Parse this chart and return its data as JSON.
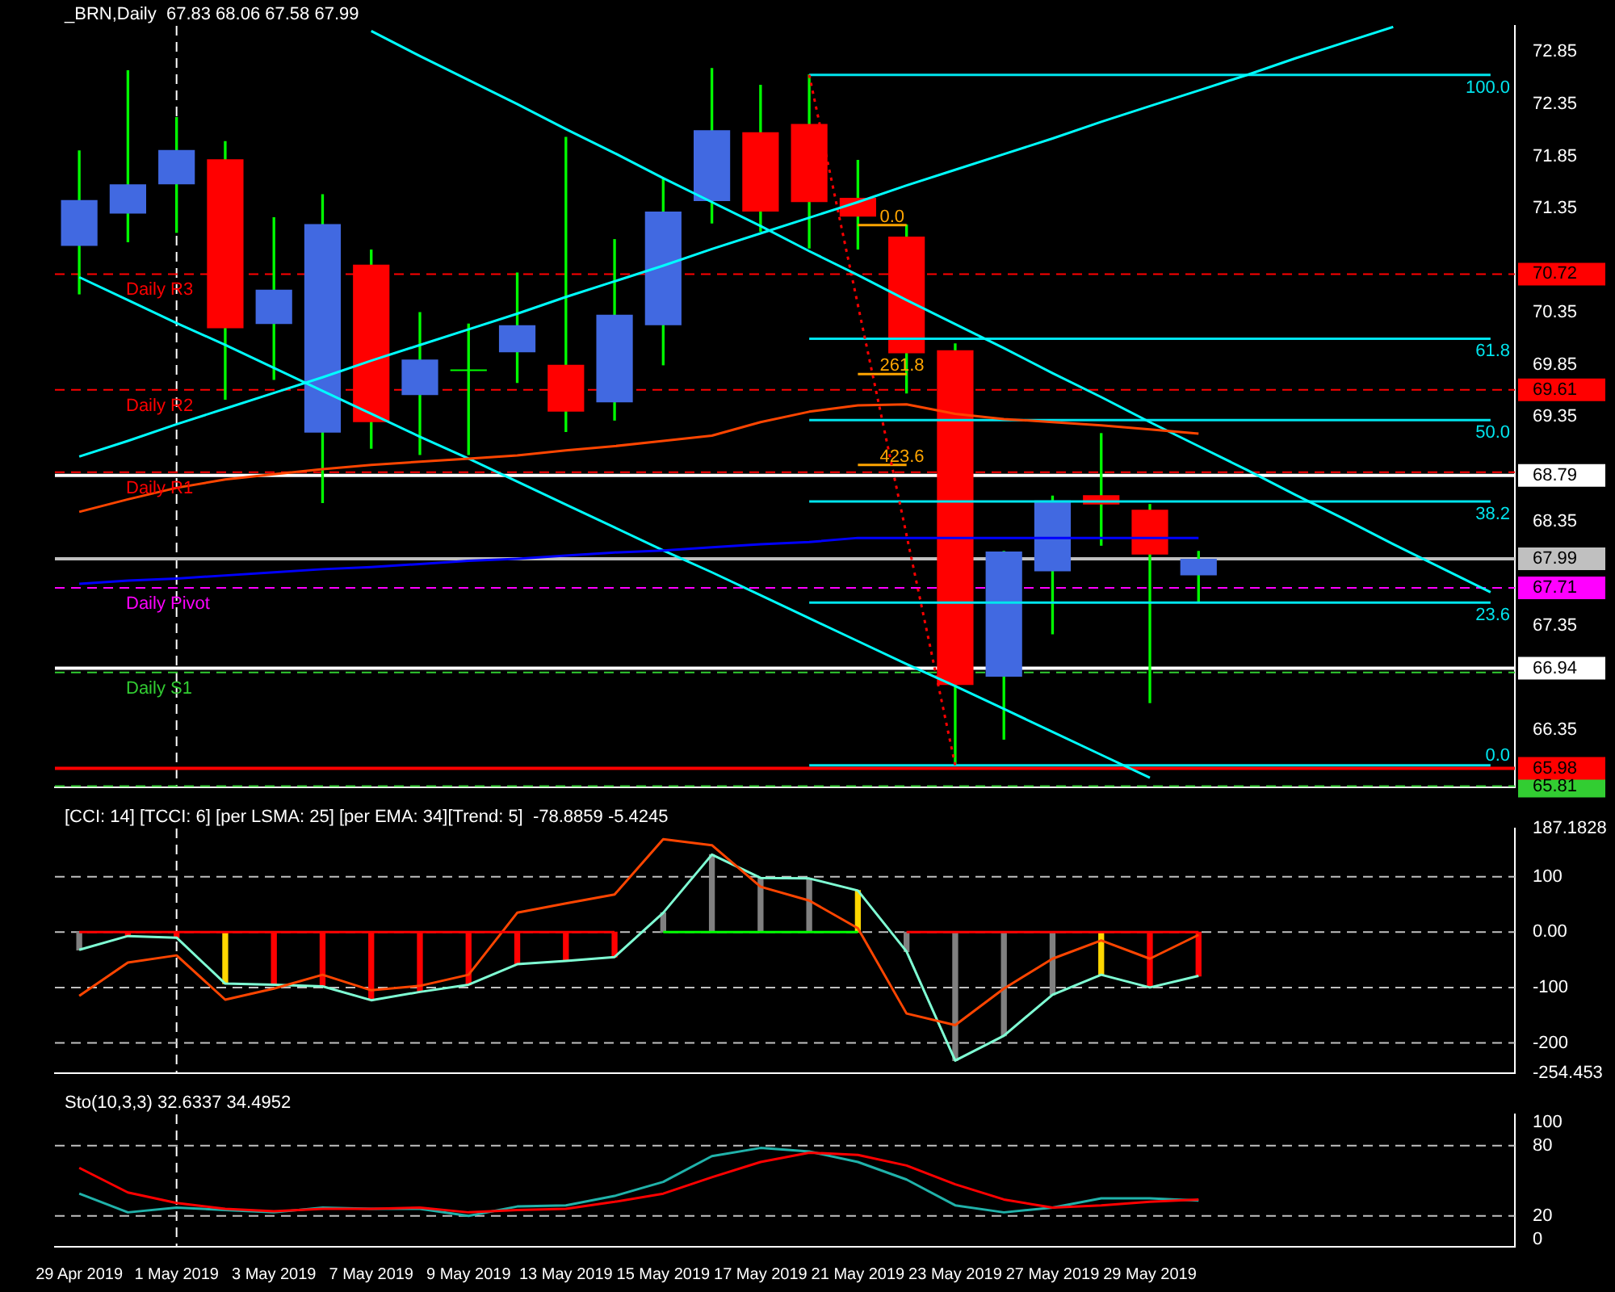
{
  "chart_data": [
    {
      "type": "candlestick",
      "title": "_BRN,Daily  67.83 68.06 67.58 67.99",
      "categories": [
        "29 Apr 2019",
        null,
        "1 May 2019",
        null,
        "3 May 2019",
        null,
        "7 May 2019",
        null,
        "9 May 2019",
        null,
        "13 May 2019",
        null,
        "15 May 2019",
        null,
        "17 May 2019",
        null,
        "21 May 2019",
        null,
        "23 May 2019",
        null,
        "27 May 2019",
        null,
        "29 May 2019",
        null,
        null,
        null,
        null,
        null,
        null,
        null
      ],
      "ohlc": [
        [
          70.99,
          71.9,
          70.53,
          71.43
        ],
        [
          71.3,
          72.67,
          71.03,
          71.58
        ],
        [
          71.58,
          72.22,
          71.12,
          71.91
        ],
        [
          71.82,
          71.99,
          69.52,
          70.2
        ],
        [
          70.24,
          71.26,
          69.71,
          70.57
        ],
        [
          69.2,
          71.48,
          68.53,
          71.2
        ],
        [
          70.81,
          70.95,
          69.05,
          69.3
        ],
        [
          69.56,
          70.35,
          68.99,
          69.9
        ],
        [
          69.79,
          70.24,
          68.99,
          69.79
        ],
        [
          69.97,
          70.73,
          69.68,
          70.23
        ],
        [
          69.85,
          72.03,
          69.21,
          69.4
        ],
        [
          69.49,
          71.05,
          69.32,
          70.33
        ],
        [
          70.23,
          71.64,
          69.85,
          71.32
        ],
        [
          71.42,
          72.69,
          71.21,
          72.1
        ],
        [
          72.08,
          72.53,
          71.13,
          71.32
        ],
        [
          72.16,
          72.63,
          70.97,
          71.41
        ],
        [
          71.45,
          71.81,
          70.96,
          71.27
        ],
        [
          71.08,
          71.19,
          69.58,
          69.96
        ],
        [
          69.99,
          70.05,
          66.01,
          66.78
        ],
        [
          66.86,
          68.06,
          66.26,
          68.06
        ],
        [
          67.87,
          68.59,
          67.27,
          68.55
        ],
        [
          68.6,
          69.19,
          68.12,
          68.51
        ],
        [
          68.46,
          68.51,
          66.61,
          68.03
        ],
        [
          67.83,
          68.06,
          67.58,
          67.99
        ],
        null,
        null,
        null,
        null,
        null,
        null
      ],
      "colors": [
        "#4169e1",
        "#4169e1",
        "#4169e1",
        "#ff0000",
        "#4169e1",
        "#4169e1",
        "#ff0000",
        "#4169e1",
        "#00ff00",
        "#4169e1",
        "#ff0000",
        "#4169e1",
        "#4169e1",
        "#4169e1",
        "#ff0000",
        "#ff0000",
        "#ff0000",
        "#ff0000",
        "#ff0000",
        "#4169e1",
        "#4169e1",
        "#ff0000",
        "#ff0000",
        "#4169e1",
        null,
        null,
        null,
        null,
        null,
        null
      ],
      "color": "#00ff00",
      "series": [
        {
          "type": "line",
          "color": "#ff4500",
          "values": [
            68.44,
            68.56,
            68.67,
            68.75,
            68.8,
            68.85,
            68.89,
            68.92,
            68.95,
            68.98,
            69.03,
            69.07,
            69.12,
            69.17,
            69.3,
            69.4,
            69.46,
            69.47,
            69.38,
            69.33,
            69.3,
            69.27,
            69.23,
            69.19,
            null,
            null,
            null,
            null,
            null,
            null
          ]
        },
        {
          "type": "line",
          "color": "#0000ff",
          "values": [
            67.75,
            67.78,
            67.8,
            67.83,
            67.86,
            67.89,
            67.91,
            67.94,
            67.97,
            67.99,
            68.02,
            68.05,
            68.07,
            68.1,
            68.13,
            68.15,
            68.19,
            68.19,
            68.19,
            68.19,
            68.19,
            68.19,
            68.19,
            68.19,
            null,
            null,
            null,
            null,
            null,
            null
          ]
        },
        {
          "type": "line",
          "color": "#00ffff",
          "values": [
            68.97,
            69.12,
            69.28,
            69.43,
            69.58,
            69.73,
            69.89,
            70.04,
            70.19,
            70.34,
            70.5,
            70.65,
            70.8,
            70.96,
            71.11,
            71.26,
            71.41,
            71.57,
            71.72,
            71.87,
            72.02,
            72.18,
            72.33,
            72.48,
            72.63,
            72.79,
            72.94,
            73.09,
            null,
            null
          ]
        },
        {
          "type": "line",
          "color": "#00ffff",
          "values": [
            null,
            null,
            null,
            null,
            null,
            null,
            73.05,
            72.81,
            72.58,
            72.35,
            72.11,
            71.88,
            71.64,
            71.41,
            71.18,
            70.94,
            70.71,
            70.47,
            70.24,
            70.01,
            69.77,
            69.54,
            69.3,
            69.07,
            68.84,
            68.6,
            68.37,
            68.13,
            67.9,
            67.67
          ]
        },
        {
          "type": "line",
          "color": "#00ffff",
          "values": [
            70.69,
            70.47,
            70.25,
            70.04,
            69.82,
            69.6,
            69.38,
            69.16,
            68.95,
            68.73,
            68.51,
            68.29,
            68.07,
            67.86,
            67.64,
            67.42,
            67.2,
            66.98,
            66.77,
            66.55,
            66.33,
            66.11,
            65.89,
            null,
            null,
            null,
            null,
            null,
            null,
            null
          ]
        },
        {
          "type": "line",
          "color": "#ff0000",
          "line_style": "dotted",
          "values": [
            null,
            null,
            null,
            null,
            null,
            null,
            null,
            null,
            null,
            null,
            null,
            null,
            null,
            null,
            null,
            72.63,
            null,
            null,
            66.01,
            null,
            null,
            null,
            null,
            null,
            null,
            null,
            null,
            null,
            null,
            null
          ]
        },
        {
          "type": "line",
          "color": "#ffa500",
          "values": [
            null,
            null,
            null,
            null,
            null,
            null,
            null,
            null,
            null,
            null,
            null,
            null,
            null,
            null,
            null,
            null,
            71.19,
            71.19,
            null,
            null,
            null,
            null,
            null,
            null,
            null,
            null,
            null,
            null,
            null,
            null
          ]
        },
        {
          "type": "line",
          "color": "#ffa500",
          "values": [
            null,
            null,
            null,
            null,
            null,
            null,
            null,
            null,
            null,
            null,
            null,
            null,
            null,
            null,
            null,
            null,
            69.76,
            69.76,
            null,
            null,
            null,
            null,
            null,
            null,
            null,
            null,
            null,
            null,
            null,
            null
          ]
        },
        {
          "type": "line",
          "color": "#ffa500",
          "values": [
            null,
            null,
            null,
            null,
            null,
            null,
            null,
            null,
            null,
            null,
            null,
            null,
            null,
            null,
            null,
            null,
            68.89,
            68.89,
            null,
            null,
            null,
            null,
            null,
            null,
            null,
            null,
            null,
            null,
            null,
            null
          ]
        },
        {
          "type": "line",
          "name": "100.0",
          "color": "#00e5ee",
          "values": [
            null,
            null,
            null,
            null,
            null,
            null,
            null,
            null,
            null,
            null,
            null,
            null,
            null,
            null,
            null,
            72.63,
            72.63,
            72.63,
            72.63,
            72.63,
            72.63,
            72.63,
            72.63,
            72.63,
            72.63,
            72.63,
            72.63,
            72.63,
            72.63,
            72.63
          ]
        },
        {
          "type": "line",
          "name": "61.8",
          "color": "#00e5ee",
          "values": [
            null,
            null,
            null,
            null,
            null,
            null,
            null,
            null,
            null,
            null,
            null,
            null,
            null,
            null,
            null,
            70.1,
            70.1,
            70.1,
            70.1,
            70.1,
            70.1,
            70.1,
            70.1,
            70.1,
            70.1,
            70.1,
            70.1,
            70.1,
            70.1,
            70.1
          ]
        },
        {
          "type": "line",
          "name": "50.0",
          "color": "#00e5ee",
          "values": [
            null,
            null,
            null,
            null,
            null,
            null,
            null,
            null,
            null,
            null,
            null,
            null,
            null,
            null,
            null,
            69.32,
            69.32,
            69.32,
            69.32,
            69.32,
            69.32,
            69.32,
            69.32,
            69.32,
            69.32,
            69.32,
            69.32,
            69.32,
            69.32,
            69.32
          ]
        },
        {
          "type": "line",
          "name": "38.2",
          "color": "#00e5ee",
          "values": [
            null,
            null,
            null,
            null,
            null,
            null,
            null,
            null,
            null,
            null,
            null,
            null,
            null,
            null,
            null,
            68.54,
            68.54,
            68.54,
            68.54,
            68.54,
            68.54,
            68.54,
            68.54,
            68.54,
            68.54,
            68.54,
            68.54,
            68.54,
            68.54,
            68.54
          ]
        },
        {
          "type": "line",
          "name": "23.6",
          "color": "#00e5ee",
          "values": [
            null,
            null,
            null,
            null,
            null,
            null,
            null,
            null,
            null,
            null,
            null,
            null,
            null,
            null,
            null,
            67.57,
            67.57,
            67.57,
            67.57,
            67.57,
            67.57,
            67.57,
            67.57,
            67.57,
            67.57,
            67.57,
            67.57,
            67.57,
            67.57,
            67.57
          ]
        },
        {
          "type": "line",
          "name": "0.0",
          "color": "#00e5ee",
          "values": [
            null,
            null,
            null,
            null,
            null,
            null,
            null,
            null,
            null,
            null,
            null,
            null,
            null,
            null,
            null,
            66.01,
            66.01,
            66.01,
            66.01,
            66.01,
            66.01,
            66.01,
            66.01,
            66.01,
            66.01,
            66.01,
            66.01,
            66.01,
            66.01,
            66.01
          ]
        }
      ],
      "ylim": [
        65.8,
        73.1
      ],
      "yticks": [
        {
          "value": 65.81,
          "label": "65.81"
        },
        {
          "value": 65.98,
          "label": "65.98"
        },
        66.35,
        {
          "value": 66.94,
          "label": "66.94"
        },
        67.35,
        {
          "value": 67.71,
          "label": "67.71"
        },
        {
          "value": 67.99,
          "label": "67.99"
        },
        68.35,
        {
          "value": 68.79,
          "label": "68.79"
        },
        69.35,
        {
          "value": 69.61,
          "label": "69.61"
        },
        69.85,
        70.35,
        {
          "value": 70.72,
          "label": "70.72"
        },
        71.35,
        71.85,
        72.35,
        72.85
      ],
      "tick_labels": "y",
      "ref_lines": [
        {
          "axis": "x",
          "value": "1 May 2019",
          "color": "#ffffff",
          "line_style": "dashed"
        },
        {
          "axis": "y",
          "value": 70.72,
          "label": "Daily R3",
          "color": "#ff0000",
          "line_style": "dashed"
        },
        {
          "axis": "y",
          "value": 69.61,
          "label": "Daily R2",
          "color": "#ff0000",
          "line_style": "dashed"
        },
        {
          "axis": "y",
          "value": 68.79,
          "color": "#ffffff",
          "line_style": "solid"
        },
        {
          "axis": "y",
          "value": 68.82,
          "label": "Daily R1",
          "color": "#ff0000",
          "line_style": "dashed"
        },
        {
          "axis": "y",
          "value": 67.99,
          "color": "#c0c0c0",
          "line_style": "solid"
        },
        {
          "axis": "y",
          "value": 67.71,
          "label": "Daily Pivot",
          "color": "#ff00ff",
          "line_style": "dashed"
        },
        {
          "axis": "y",
          "value": 66.9,
          "label": "Daily S1",
          "color": "#32cd32",
          "line_style": "dashed"
        },
        {
          "axis": "y",
          "value": 66.94,
          "color": "#ffffff",
          "line_style": "solid"
        },
        {
          "axis": "y",
          "value": 65.98,
          "color": "#ff0000",
          "line_style": "solid"
        },
        {
          "axis": "y",
          "value": 65.81,
          "color": "#32cd32",
          "line_style": "dashed"
        }
      ],
      "annotations": [
        {
          "text": "0.0",
          "x": "21 May 2019",
          "y": 71.19
        },
        {
          "text": "261.8",
          "x": "21 May 2019",
          "y": 69.76
        },
        {
          "text": "423.6",
          "x": "21 May 2019",
          "y": 68.89
        }
      ]
    },
    {
      "type": "bar",
      "title": "[CCI: 14] [TCCI: 6] [per LSMA: 25] [per EMA: 34][Trend: 5]  -78.8859 -5.4245",
      "categories": [
        "29 Apr 2019",
        null,
        "1 May 2019",
        null,
        "3 May 2019",
        null,
        "7 May 2019",
        null,
        "9 May 2019",
        null,
        "13 May 2019",
        null,
        "15 May 2019",
        null,
        "17 May 2019",
        null,
        "21 May 2019",
        null,
        "23 May 2019",
        null,
        "27 May 2019",
        null,
        "29 May 2019",
        null,
        null,
        null,
        null,
        null,
        null,
        null
      ],
      "series": [
        {
          "type": "bar",
          "colors": [
            "#808080",
            "#ff0000",
            "#ff0000",
            "#ffd700",
            "#ff0000",
            "#ff0000",
            "#ff0000",
            "#ff0000",
            "#ff0000",
            "#ff0000",
            "#ff0000",
            "#ff0000",
            "#808080",
            "#808080",
            "#808080",
            "#808080",
            "#ffd700",
            "#808080",
            "#808080",
            "#808080",
            "#808080",
            "#ffd700",
            "#ff0000",
            "#ff0000",
            null,
            null,
            null,
            null,
            null,
            null
          ],
          "values": [
            -32,
            -7,
            -10,
            -93,
            -95,
            -98,
            -123,
            -108,
            -95,
            -58,
            -52,
            -45,
            35,
            140,
            98,
            97,
            75,
            -35,
            -232,
            -187,
            -113,
            -77,
            -100,
            -79,
            null,
            null,
            null,
            null,
            null,
            null
          ]
        },
        {
          "type": "line",
          "color": "#ff0000",
          "values": [
            0,
            0,
            0,
            0,
            0,
            0,
            0,
            0,
            0,
            0,
            0,
            0,
            null,
            null,
            null,
            null,
            null,
            null,
            null,
            null,
            null,
            null,
            null,
            null,
            null,
            null,
            null,
            null,
            null,
            null
          ]
        },
        {
          "type": "line",
          "color": "#00ff00",
          "values": [
            null,
            null,
            null,
            null,
            null,
            null,
            null,
            null,
            null,
            null,
            null,
            null,
            0,
            0,
            0,
            0,
            0,
            null,
            null,
            null,
            null,
            null,
            null,
            null,
            null,
            null,
            null,
            null,
            null,
            null
          ]
        },
        {
          "type": "line",
          "color": "#ff0000",
          "values": [
            null,
            null,
            null,
            null,
            null,
            null,
            null,
            null,
            null,
            null,
            null,
            null,
            null,
            null,
            null,
            null,
            null,
            0,
            0,
            0,
            0,
            0,
            0,
            0,
            null,
            null,
            null,
            null,
            null,
            null
          ]
        },
        {
          "type": "line",
          "color": "#ff4500",
          "values": [
            -115,
            -55,
            -42,
            -122,
            -102,
            -77,
            -105,
            -97,
            -77,
            35,
            52,
            68,
            168,
            157,
            82,
            57,
            7,
            -147,
            -168,
            -102,
            -48,
            -15,
            -48,
            -5,
            null,
            null,
            null,
            null,
            null,
            null
          ]
        },
        {
          "type": "line",
          "color": "#7fffd4",
          "values": [
            -32,
            -7,
            -10,
            -93,
            -95,
            -98,
            -123,
            -108,
            -95,
            -58,
            -52,
            -45,
            35,
            140,
            98,
            97,
            75,
            -35,
            -232,
            -187,
            -113,
            -77,
            -100,
            -79,
            null,
            null,
            null,
            null,
            null,
            null
          ]
        }
      ],
      "ylim": [
        -254.453,
        187.1828
      ],
      "yticks": [
        {
          "value": -254.453,
          "label": "-254.453"
        },
        -200,
        -100,
        {
          "value": 0,
          "label": "0.00"
        },
        100,
        {
          "value": 187.1828,
          "label": "187.1828"
        }
      ],
      "tick_labels": "y",
      "ref_lines": [
        {
          "axis": "x",
          "value": "1 May 2019",
          "color": "#ffffff",
          "line_style": "dashed"
        },
        {
          "axis": "y",
          "value": 100,
          "color": "#c0c0c0",
          "line_style": "dashed"
        },
        {
          "axis": "y",
          "value": 0,
          "color": "#c0c0c0",
          "line_style": "dashed"
        },
        {
          "axis": "y",
          "value": -100,
          "color": "#c0c0c0",
          "line_style": "dashed"
        },
        {
          "axis": "y",
          "value": -200,
          "color": "#c0c0c0",
          "line_style": "dashed"
        }
      ]
    },
    {
      "type": "line",
      "title": "Sto(10,3,3) 32.6337 34.4952",
      "categories": [
        "29 Apr 2019",
        null,
        "1 May 2019",
        null,
        "3 May 2019",
        null,
        "7 May 2019",
        null,
        "9 May 2019",
        null,
        "13 May 2019",
        null,
        "15 May 2019",
        null,
        "17 May 2019",
        null,
        "21 May 2019",
        null,
        "23 May 2019",
        null,
        "27 May 2019",
        null,
        "29 May 2019",
        null,
        null,
        null,
        null,
        null,
        null,
        null
      ],
      "series": [
        {
          "color": "#ff0000",
          "values": [
            61,
            40,
            31,
            26,
            24,
            26,
            26,
            27,
            23,
            25,
            26,
            32,
            39,
            53,
            66,
            74,
            72,
            63,
            47,
            34,
            27,
            29,
            32,
            34,
            null,
            null,
            null,
            null,
            null,
            null
          ]
        },
        {
          "color": "#20b2aa",
          "values": [
            39,
            23,
            27,
            25,
            23,
            27,
            26,
            26,
            20,
            28,
            29,
            37,
            49,
            71,
            78,
            75,
            66,
            51,
            29,
            23,
            27,
            35,
            35,
            33,
            null,
            null,
            null,
            null,
            null,
            null
          ]
        }
      ],
      "ylim": [
        -6.4,
        106.7
      ],
      "yticks": [
        0,
        20,
        80,
        100
      ],
      "ref_lines": [
        {
          "axis": "x",
          "value": "1 May 2019",
          "color": "#ffffff",
          "line_style": "dashed"
        },
        {
          "axis": "y",
          "value": 80,
          "color": "#c0c0c0",
          "line_style": "dashed"
        },
        {
          "axis": "y",
          "value": 20,
          "color": "#c0c0c0",
          "line_style": "dashed"
        }
      ]
    }
  ]
}
